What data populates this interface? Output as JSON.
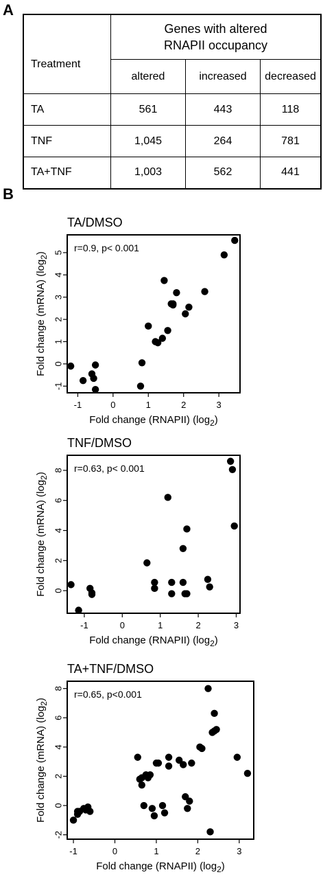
{
  "panel_a": {
    "letter": "A",
    "header_line1": "Genes with altered",
    "header_line2": "RNAPII occupancy",
    "col_treatment": "Treatment",
    "col_altered": "altered",
    "col_increased": "increased",
    "col_decreased": "decreased",
    "rows": [
      {
        "treatment": "TA",
        "altered": "561",
        "increased": "443",
        "decreased": "118"
      },
      {
        "treatment": "TNF",
        "altered": "1,045",
        "increased": "264",
        "decreased": "781"
      },
      {
        "treatment": "TA+TNF",
        "altered": "1,003",
        "increased": "562",
        "decreased": "441"
      }
    ]
  },
  "panel_b": {
    "letter": "B"
  },
  "chart_data": [
    {
      "type": "table",
      "columns": [
        "Treatment",
        "altered",
        "increased",
        "decreased"
      ],
      "rows": [
        [
          "TA",
          "561",
          "443",
          "118"
        ],
        [
          "TNF",
          "1,045",
          "264",
          "781"
        ],
        [
          "TA+TNF",
          "1,003",
          "562",
          "441"
        ]
      ],
      "title": "Genes with altered RNAPII occupancy"
    },
    {
      "type": "scatter",
      "title": "TA/DMSO",
      "annotation": "r=0.9, p< 0.001",
      "xlabel": "Fold change (RNAPII) (log",
      "ylabel": "Fold change (mRNA) (log",
      "label_subscript": "2",
      "label_close": ")",
      "xlim": [
        -1.3,
        3.6
      ],
      "ylim": [
        -1.3,
        5.8
      ],
      "xticks": [
        -1,
        0,
        1,
        2,
        3
      ],
      "yticks": [
        -1,
        0,
        1,
        2,
        3,
        4,
        5
      ],
      "x": [
        -1.2,
        -0.85,
        -0.6,
        -0.55,
        -0.5,
        -0.5,
        0.78,
        0.82,
        1.0,
        1.2,
        1.27,
        1.4,
        1.45,
        1.55,
        1.65,
        1.7,
        1.7,
        1.8,
        2.05,
        2.15,
        2.6,
        3.15,
        3.45
      ],
      "y": [
        -0.1,
        -0.75,
        -0.45,
        -0.65,
        -0.05,
        -1.15,
        -1.0,
        0.05,
        1.7,
        1.0,
        0.95,
        1.15,
        3.75,
        1.5,
        2.7,
        2.7,
        2.65,
        3.2,
        2.25,
        2.55,
        3.25,
        4.9,
        5.55
      ]
    },
    {
      "type": "scatter",
      "title": "TNF/DMSO",
      "annotation": "r=0.63, p< 0.001",
      "xlabel": "Fold change (RNAPII) (log",
      "ylabel": "Fold change (mRNA) (log",
      "label_subscript": "2",
      "label_close": ")",
      "xlim": [
        -1.45,
        3.1
      ],
      "ylim": [
        -1.5,
        9.0
      ],
      "xticks": [
        -1,
        0,
        1,
        2,
        3
      ],
      "yticks": [
        0,
        2,
        4,
        6,
        8
      ],
      "x": [
        -1.35,
        -1.15,
        -0.85,
        -0.8,
        -0.8,
        0.65,
        0.85,
        0.85,
        1.2,
        1.3,
        1.3,
        1.6,
        1.6,
        1.65,
        1.7,
        1.7,
        2.25,
        2.3,
        2.85,
        2.9,
        2.95
      ],
      "y": [
        0.4,
        -1.3,
        0.15,
        -0.15,
        -0.25,
        1.85,
        0.55,
        0.15,
        6.2,
        0.55,
        -0.2,
        0.55,
        2.8,
        -0.2,
        4.1,
        -0.2,
        0.75,
        0.25,
        8.6,
        8.05,
        4.3
      ]
    },
    {
      "type": "scatter",
      "title": "TA+TNF/DMSO",
      "annotation": "r=0.65, p<0.001",
      "xlabel": "Fold change (RNAPII) (log",
      "ylabel": "Fold change (mRNA) (log",
      "label_subscript": "2",
      "label_close": ")",
      "xlim": [
        -1.15,
        3.35
      ],
      "ylim": [
        -2.3,
        8.5
      ],
      "xticks": [
        -1,
        0,
        1,
        2,
        3
      ],
      "yticks": [
        -2,
        0,
        2,
        4,
        6,
        8
      ],
      "x": [
        -1.0,
        -0.9,
        -0.9,
        -0.85,
        -0.75,
        -0.7,
        -0.65,
        -0.6,
        0.55,
        0.6,
        0.65,
        0.65,
        0.7,
        0.75,
        0.8,
        0.85,
        0.9,
        0.95,
        1.0,
        1.05,
        1.15,
        1.2,
        1.3,
        1.3,
        1.55,
        1.65,
        1.7,
        1.75,
        1.8,
        1.85,
        2.05,
        2.1,
        2.25,
        2.3,
        2.35,
        2.4,
        2.4,
        2.45,
        2.95,
        3.2
      ],
      "y": [
        -1.0,
        -0.6,
        -0.4,
        -0.4,
        -0.2,
        -0.3,
        -0.1,
        -0.4,
        3.3,
        1.8,
        1.4,
        1.9,
        0.0,
        2.1,
        1.9,
        2.1,
        -0.2,
        -0.7,
        2.9,
        2.9,
        0.0,
        -0.5,
        3.3,
        2.7,
        3.1,
        2.8,
        0.6,
        -0.2,
        0.3,
        2.9,
        4.0,
        3.9,
        8.0,
        -1.8,
        5.0,
        5.1,
        6.3,
        5.2,
        3.3,
        2.2
      ]
    }
  ]
}
